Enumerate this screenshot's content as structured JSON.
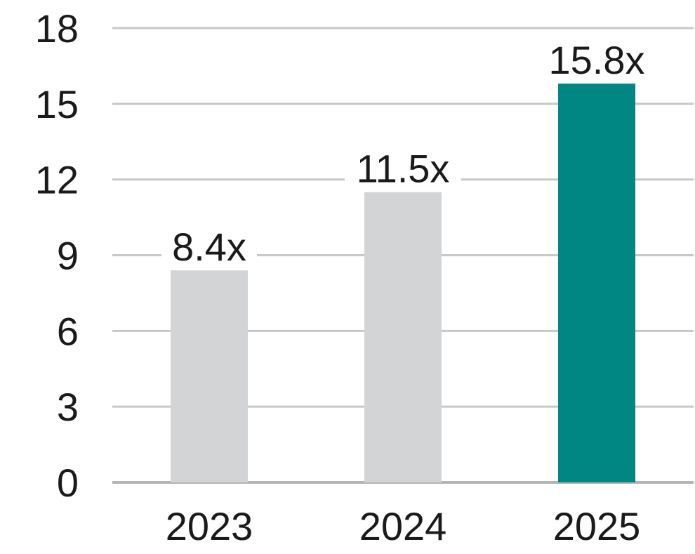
{
  "chart_data": {
    "type": "bar",
    "title": "",
    "xlabel": "",
    "ylabel": "",
    "categories": [
      "2023",
      "2024",
      "2025"
    ],
    "values": [
      8.4,
      11.5,
      15.8
    ],
    "data_labels": [
      "8.4x",
      "11.5x",
      "15.8x"
    ],
    "ylim": [
      0,
      18
    ],
    "yticks": [
      0,
      3,
      6,
      9,
      12,
      15,
      18
    ],
    "grid": true,
    "legend": "none",
    "colors": {
      "bar_default": "#d3d4d6",
      "bar_highlight": "#008784",
      "gridline": "#c8c8c8",
      "text": "#1a1a1a"
    },
    "highlight_index": 2
  }
}
